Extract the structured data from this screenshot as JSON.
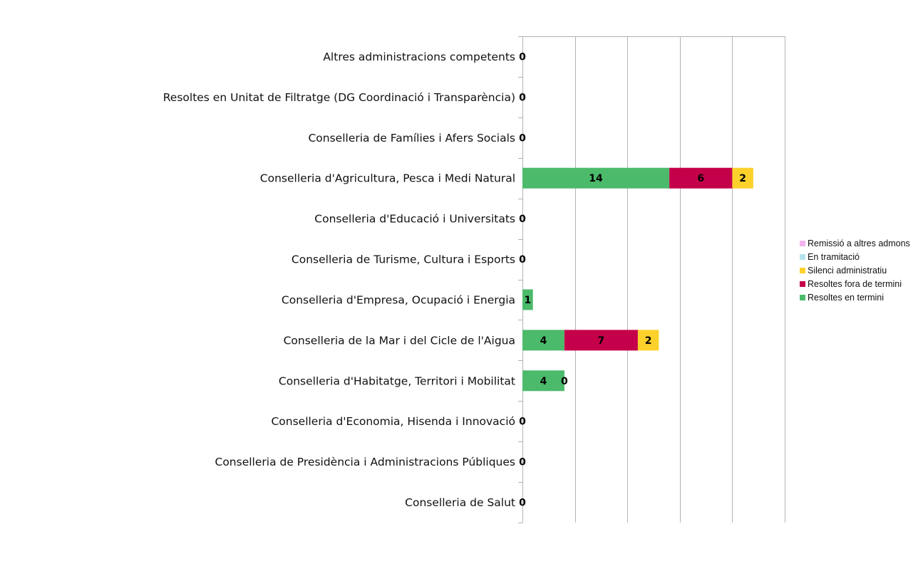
{
  "chart_data": {
    "type": "bar",
    "orientation": "horizontal",
    "stacked": true,
    "title": "",
    "xlabel": "",
    "ylabel": "",
    "xlim": [
      0,
      25
    ],
    "grid": true,
    "legend_position": "right",
    "categories": [
      "Altres administracions competents",
      "Resoltes en Unitat de Filtratge (DG Coordinació i Transparència)",
      "Conselleria de Famílies i Afers Socials",
      "Conselleria d'Agricultura, Pesca i Medi Natural",
      "Conselleria d'Educació i Universitats",
      "Conselleria de Turisme, Cultura i Esports",
      "Conselleria d'Empresa, Ocupació i Energia",
      "Conselleria de la Mar i del Cicle de l'Aigua",
      "Conselleria d'Habitatge, Territori i Mobilitat",
      "Conselleria d'Economia, Hisenda i Innovació",
      "Conselleria de Presidència i Administracions Públiques",
      "Conselleria de Salut"
    ],
    "series": [
      {
        "name": "Resoltes en termini",
        "color": "#4cba6b",
        "values": [
          0,
          0,
          0,
          14,
          0,
          0,
          1,
          4,
          4,
          0,
          0,
          0
        ]
      },
      {
        "name": "Resoltes fora de termini",
        "color": "#c5004a",
        "values": [
          0,
          0,
          0,
          6,
          0,
          0,
          0,
          7,
          0,
          0,
          0,
          0
        ]
      },
      {
        "name": "Silenci administratiu",
        "color": "#fdd12b",
        "values": [
          0,
          0,
          0,
          2,
          0,
          0,
          0,
          2,
          0,
          0,
          0,
          0
        ]
      },
      {
        "name": "En tramitació",
        "color": "#b3e3ef",
        "values": [
          0,
          0,
          0,
          0,
          0,
          0,
          0,
          0,
          0,
          0,
          0,
          0
        ]
      },
      {
        "name": "Remissió a altres admons",
        "color": "#f5b3f0",
        "values": [
          0,
          0,
          0,
          0,
          0,
          0,
          0,
          0,
          0,
          0,
          0,
          0
        ]
      }
    ],
    "data_labels": [
      [
        "0"
      ],
      [
        "0"
      ],
      [
        "0"
      ],
      [
        "14",
        "6",
        "2"
      ],
      [
        "0"
      ],
      [
        "0"
      ],
      [
        "1"
      ],
      [
        "4",
        "7",
        "2"
      ],
      [
        "4",
        "0"
      ],
      [
        "0"
      ],
      [
        "0"
      ],
      [
        "0"
      ]
    ],
    "legend": [
      "Remissió a altres admons",
      "En tramitació",
      "Silenci administratiu",
      "Resoltes fora de termini",
      "Resoltes en termini"
    ]
  }
}
